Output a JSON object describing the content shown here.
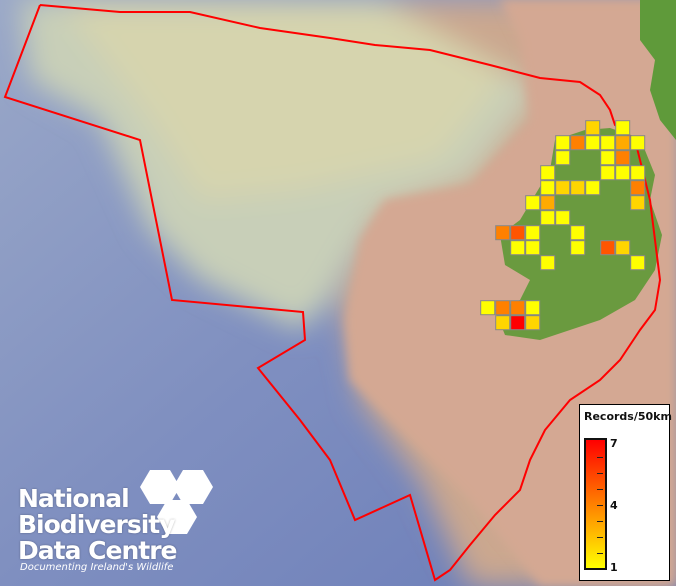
{
  "map": {
    "legend": {
      "title": "Records/50km",
      "max_label": "7",
      "mid_label": "4",
      "min_label": "1",
      "color_low": "#ffff00",
      "color_mid": "#ff8000",
      "color_high": "#ff0000"
    },
    "boundary_color": "#ff0000",
    "grid_cell_border": "#888888",
    "records": [
      {
        "col": 7,
        "row": 0,
        "value": 2
      },
      {
        "col": 9,
        "row": 0,
        "value": 1
      },
      {
        "col": 5,
        "row": 1,
        "value": 1
      },
      {
        "col": 6,
        "row": 1,
        "value": 4
      },
      {
        "col": 7,
        "row": 1,
        "value": 1
      },
      {
        "col": 8,
        "row": 1,
        "value": 1
      },
      {
        "col": 9,
        "row": 1,
        "value": 3
      },
      {
        "col": 10,
        "row": 1,
        "value": 1
      },
      {
        "col": 5,
        "row": 2,
        "value": 1
      },
      {
        "col": 8,
        "row": 2,
        "value": 1
      },
      {
        "col": 9,
        "row": 2,
        "value": 4
      },
      {
        "col": 4,
        "row": 3,
        "value": 1
      },
      {
        "col": 8,
        "row": 3,
        "value": 1
      },
      {
        "col": 9,
        "row": 3,
        "value": 1
      },
      {
        "col": 10,
        "row": 3,
        "value": 1
      },
      {
        "col": 4,
        "row": 4,
        "value": 1
      },
      {
        "col": 5,
        "row": 4,
        "value": 2
      },
      {
        "col": 6,
        "row": 4,
        "value": 2
      },
      {
        "col": 7,
        "row": 4,
        "value": 1
      },
      {
        "col": 10,
        "row": 4,
        "value": 4
      },
      {
        "col": 3,
        "row": 5,
        "value": 1
      },
      {
        "col": 4,
        "row": 5,
        "value": 3
      },
      {
        "col": 10,
        "row": 5,
        "value": 2
      },
      {
        "col": 4,
        "row": 6,
        "value": 1
      },
      {
        "col": 5,
        "row": 6,
        "value": 1
      },
      {
        "col": 1,
        "row": 7,
        "value": 4
      },
      {
        "col": 2,
        "row": 7,
        "value": 5
      },
      {
        "col": 3,
        "row": 7,
        "value": 1
      },
      {
        "col": 6,
        "row": 7,
        "value": 1
      },
      {
        "col": 2,
        "row": 8,
        "value": 1
      },
      {
        "col": 3,
        "row": 8,
        "value": 1
      },
      {
        "col": 6,
        "row": 8,
        "value": 1
      },
      {
        "col": 8,
        "row": 8,
        "value": 5
      },
      {
        "col": 9,
        "row": 8,
        "value": 2
      },
      {
        "col": 4,
        "row": 9,
        "value": 1
      },
      {
        "col": 10,
        "row": 9,
        "value": 1
      },
      {
        "col": 0,
        "row": 12,
        "value": 1
      },
      {
        "col": 1,
        "row": 12,
        "value": 4
      },
      {
        "col": 2,
        "row": 12,
        "value": 4
      },
      {
        "col": 3,
        "row": 12,
        "value": 1
      },
      {
        "col": 1,
        "row": 13,
        "value": 2
      },
      {
        "col": 2,
        "row": 13,
        "value": 7
      },
      {
        "col": 3,
        "row": 13,
        "value": 2
      }
    ]
  },
  "logo": {
    "line1": "National",
    "line2": "Biodiversity",
    "line3": "Data Centre",
    "tagline": "Documenting Ireland's Wildlife"
  }
}
